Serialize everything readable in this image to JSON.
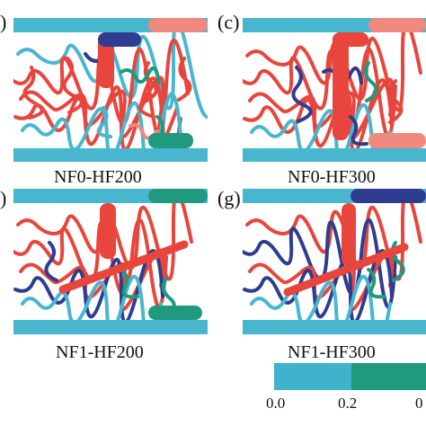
{
  "panels": [
    {
      "label": "(a)",
      "visible_label": ")",
      "caption": ""
    },
    {
      "label": "(c)",
      "visible_label": "(c)",
      "caption": "NF0-HF300"
    },
    {
      "label": "(e)",
      "visible_label": ")",
      "caption": ""
    },
    {
      "label": "(g)",
      "visible_label": "(g)",
      "caption": "NF1-HF300"
    }
  ],
  "captions": {
    "top_left": "NF0-HF200",
    "top_right": "NF0-HF300",
    "bottom_left": "NF1-HF200",
    "bottom_right": "NF1-HF300"
  },
  "colorbar": {
    "ticks": [
      "0.0",
      "0.2",
      "0"
    ],
    "colors": [
      "#3fb3cc",
      "#1f9a7e",
      "#e8453c"
    ]
  },
  "colors": {
    "wall": "#49b6d0",
    "red": "#e8453c",
    "salmon": "#f08a7e",
    "navy": "#2e3d8f",
    "teal": "#1f9a7e",
    "cyan": "#49b6d0"
  }
}
